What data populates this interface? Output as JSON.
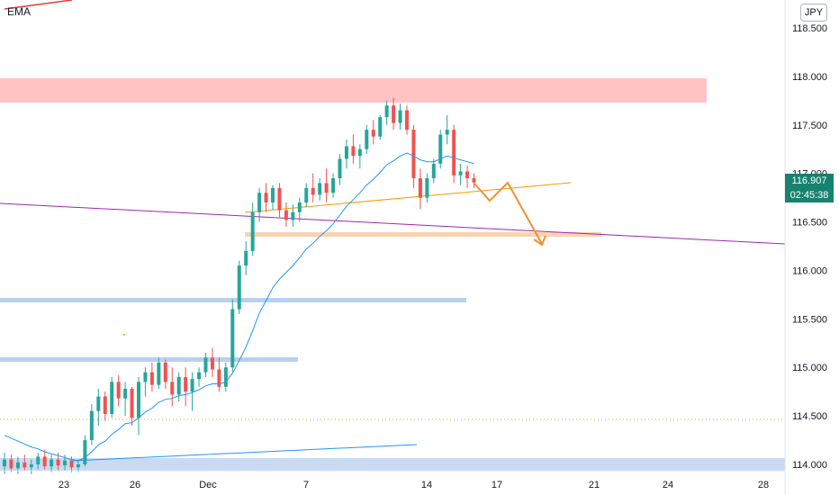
{
  "header": {
    "indicator_label": "EMA",
    "currency": "JPY"
  },
  "price_axis": {
    "ticks": [
      "118.500",
      "118.000",
      "117.500",
      "117.000",
      "116.500",
      "116.000",
      "115.500",
      "115.000",
      "114.500",
      "114.000"
    ],
    "current_price": "116.907",
    "countdown": "02:45:38"
  },
  "time_axis": {
    "ticks": [
      "23",
      "26",
      "Dec",
      "7",
      "14",
      "17",
      "21",
      "24",
      "28"
    ]
  },
  "colors": {
    "bull": "#26a69a",
    "bear": "#ef5350",
    "ema": "#2196f3",
    "trendline_purple": "#9c27b0",
    "trendline_orange": "#ff9800",
    "resistance_zone": "#ffbcbc",
    "support_zone": "#c8daf4",
    "projection": "#f0912c",
    "price_tag": "#16826f"
  },
  "chart_data": {
    "type": "candlestick",
    "symbol_quote": "JPY",
    "ylim": [
      113.92,
      118.72
    ],
    "x_ticks": [
      "23",
      "26",
      "Dec",
      "7",
      "14",
      "17",
      "21",
      "24",
      "28"
    ],
    "y_ticks": [
      118.5,
      118.0,
      117.5,
      117.0,
      116.5,
      116.0,
      115.5,
      115.0,
      114.5,
      114.0
    ],
    "indicators": [
      "EMA"
    ],
    "candles": [
      {
        "o": 113.98,
        "h": 114.12,
        "l": 113.9,
        "c": 114.05
      },
      {
        "o": 114.05,
        "h": 114.1,
        "l": 113.92,
        "c": 113.96
      },
      {
        "o": 113.96,
        "h": 114.08,
        "l": 113.9,
        "c": 114.02
      },
      {
        "o": 114.02,
        "h": 114.1,
        "l": 113.93,
        "c": 113.97
      },
      {
        "o": 113.97,
        "h": 114.05,
        "l": 113.9,
        "c": 114.0
      },
      {
        "o": 114.0,
        "h": 114.12,
        "l": 113.95,
        "c": 114.08
      },
      {
        "o": 114.08,
        "h": 114.15,
        "l": 113.95,
        "c": 113.98
      },
      {
        "o": 113.98,
        "h": 114.1,
        "l": 113.92,
        "c": 114.05
      },
      {
        "o": 114.05,
        "h": 114.12,
        "l": 113.94,
        "c": 113.99
      },
      {
        "o": 113.99,
        "h": 114.1,
        "l": 113.93,
        "c": 114.04
      },
      {
        "o": 114.04,
        "h": 114.08,
        "l": 113.92,
        "c": 113.97
      },
      {
        "o": 113.97,
        "h": 114.05,
        "l": 113.92,
        "c": 114.0
      },
      {
        "o": 114.0,
        "h": 114.3,
        "l": 113.98,
        "c": 114.25
      },
      {
        "o": 114.25,
        "h": 114.62,
        "l": 114.2,
        "c": 114.55
      },
      {
        "o": 114.55,
        "h": 114.78,
        "l": 114.4,
        "c": 114.7
      },
      {
        "o": 114.7,
        "h": 114.75,
        "l": 114.45,
        "c": 114.52
      },
      {
        "o": 114.52,
        "h": 114.9,
        "l": 114.48,
        "c": 114.85
      },
      {
        "o": 114.85,
        "h": 114.92,
        "l": 114.6,
        "c": 114.68
      },
      {
        "o": 114.68,
        "h": 114.85,
        "l": 114.5,
        "c": 114.78
      },
      {
        "o": 114.78,
        "h": 114.8,
        "l": 114.4,
        "c": 114.48
      },
      {
        "o": 114.48,
        "h": 114.9,
        "l": 114.3,
        "c": 114.85
      },
      {
        "o": 114.85,
        "h": 115.0,
        "l": 114.7,
        "c": 114.95
      },
      {
        "o": 114.95,
        "h": 115.05,
        "l": 114.75,
        "c": 114.82
      },
      {
        "o": 114.82,
        "h": 115.1,
        "l": 114.78,
        "c": 115.05
      },
      {
        "o": 115.05,
        "h": 115.08,
        "l": 114.78,
        "c": 114.85
      },
      {
        "o": 114.85,
        "h": 115.0,
        "l": 114.6,
        "c": 114.72
      },
      {
        "o": 114.72,
        "h": 114.95,
        "l": 114.65,
        "c": 114.9
      },
      {
        "o": 114.9,
        "h": 115.0,
        "l": 114.6,
        "c": 114.75
      },
      {
        "o": 114.75,
        "h": 114.95,
        "l": 114.55,
        "c": 114.88
      },
      {
        "o": 114.88,
        "h": 115.0,
        "l": 114.8,
        "c": 114.95
      },
      {
        "o": 114.95,
        "h": 115.15,
        "l": 114.9,
        "c": 115.1
      },
      {
        "o": 115.1,
        "h": 115.2,
        "l": 114.9,
        "c": 114.98
      },
      {
        "o": 114.98,
        "h": 115.1,
        "l": 114.75,
        "c": 114.8
      },
      {
        "o": 114.8,
        "h": 115.05,
        "l": 114.75,
        "c": 115.0
      },
      {
        "o": 115.0,
        "h": 115.7,
        "l": 114.95,
        "c": 115.6
      },
      {
        "o": 115.6,
        "h": 116.1,
        "l": 115.55,
        "c": 116.05
      },
      {
        "o": 116.05,
        "h": 116.3,
        "l": 115.95,
        "c": 116.2
      },
      {
        "o": 116.2,
        "h": 116.7,
        "l": 116.15,
        "c": 116.6
      },
      {
        "o": 116.6,
        "h": 116.85,
        "l": 116.5,
        "c": 116.8
      },
      {
        "o": 116.8,
        "h": 116.9,
        "l": 116.6,
        "c": 116.7
      },
      {
        "o": 116.7,
        "h": 116.88,
        "l": 116.62,
        "c": 116.85
      },
      {
        "o": 116.85,
        "h": 116.9,
        "l": 116.55,
        "c": 116.62
      },
      {
        "o": 116.62,
        "h": 116.7,
        "l": 116.45,
        "c": 116.52
      },
      {
        "o": 116.52,
        "h": 116.68,
        "l": 116.45,
        "c": 116.6
      },
      {
        "o": 116.6,
        "h": 116.75,
        "l": 116.5,
        "c": 116.7
      },
      {
        "o": 116.7,
        "h": 116.9,
        "l": 116.65,
        "c": 116.85
      },
      {
        "o": 116.85,
        "h": 117.0,
        "l": 116.7,
        "c": 116.78
      },
      {
        "o": 116.78,
        "h": 116.95,
        "l": 116.72,
        "c": 116.9
      },
      {
        "o": 116.9,
        "h": 117.05,
        "l": 116.7,
        "c": 116.8
      },
      {
        "o": 116.8,
        "h": 117.0,
        "l": 116.75,
        "c": 116.95
      },
      {
        "o": 116.95,
        "h": 117.2,
        "l": 116.88,
        "c": 117.15
      },
      {
        "o": 117.15,
        "h": 117.35,
        "l": 117.05,
        "c": 117.28
      },
      {
        "o": 117.28,
        "h": 117.4,
        "l": 117.1,
        "c": 117.18
      },
      {
        "o": 117.18,
        "h": 117.3,
        "l": 117.05,
        "c": 117.25
      },
      {
        "o": 117.25,
        "h": 117.5,
        "l": 117.2,
        "c": 117.45
      },
      {
        "o": 117.45,
        "h": 117.55,
        "l": 117.3,
        "c": 117.38
      },
      {
        "o": 117.38,
        "h": 117.6,
        "l": 117.35,
        "c": 117.58
      },
      {
        "o": 117.58,
        "h": 117.75,
        "l": 117.5,
        "c": 117.7
      },
      {
        "o": 117.7,
        "h": 117.78,
        "l": 117.45,
        "c": 117.52
      },
      {
        "o": 117.52,
        "h": 117.72,
        "l": 117.45,
        "c": 117.65
      },
      {
        "o": 117.65,
        "h": 117.7,
        "l": 117.4,
        "c": 117.45
      },
      {
        "o": 117.45,
        "h": 117.5,
        "l": 116.85,
        "c": 116.95
      },
      {
        "o": 116.95,
        "h": 117.05,
        "l": 116.63,
        "c": 116.75
      },
      {
        "o": 116.75,
        "h": 117.0,
        "l": 116.7,
        "c": 116.95
      },
      {
        "o": 116.95,
        "h": 117.15,
        "l": 116.9,
        "c": 117.1
      },
      {
        "o": 117.1,
        "h": 117.45,
        "l": 117.05,
        "c": 117.4
      },
      {
        "o": 117.4,
        "h": 117.6,
        "l": 117.3,
        "c": 117.45
      },
      {
        "o": 117.45,
        "h": 117.5,
        "l": 116.9,
        "c": 116.98
      },
      {
        "o": 116.98,
        "h": 117.1,
        "l": 116.88,
        "c": 117.02
      },
      {
        "o": 117.02,
        "h": 117.08,
        "l": 116.85,
        "c": 116.95
      },
      {
        "o": 116.95,
        "h": 117.0,
        "l": 116.85,
        "c": 116.907
      }
    ],
    "ema": [
      114.3,
      114.27,
      114.24,
      114.21,
      114.18,
      114.16,
      114.13,
      114.11,
      114.09,
      114.07,
      114.05,
      114.04,
      114.07,
      114.13,
      114.2,
      114.24,
      114.31,
      114.36,
      114.42,
      114.43,
      114.48,
      114.54,
      114.58,
      114.64,
      114.67,
      114.68,
      114.71,
      114.72,
      114.74,
      114.77,
      114.81,
      114.83,
      114.83,
      114.85,
      114.94,
      115.07,
      115.21,
      115.38,
      115.56,
      115.69,
      115.82,
      115.91,
      115.98,
      116.05,
      116.13,
      116.22,
      116.28,
      116.35,
      116.41,
      116.48,
      116.57,
      116.66,
      116.73,
      116.8,
      116.88,
      116.94,
      117.01,
      117.09,
      117.13,
      117.18,
      117.21,
      117.18,
      117.14,
      117.12,
      117.12,
      117.15,
      117.18,
      117.16,
      117.14,
      117.12,
      117.1
    ]
  }
}
